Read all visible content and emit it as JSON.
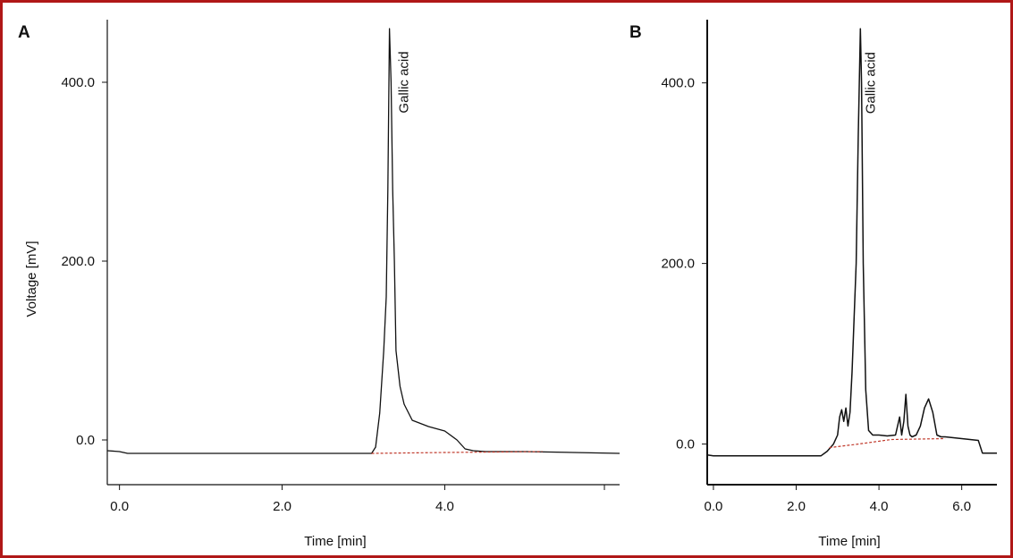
{
  "colors": {
    "border": "#b01818",
    "trace": "#111111",
    "baseline": "#c0392b"
  },
  "chart_data": [
    {
      "panel": "A",
      "type": "line",
      "xlabel": "Time [min]",
      "ylabel": "Voltage [mV]",
      "xlim": [
        -0.15,
        6.15
      ],
      "ylim": [
        -50,
        470
      ],
      "x_ticks": [
        0.0,
        2.0,
        4.0
      ],
      "x_tick_labels": [
        "0.0",
        "2.0",
        "4.0"
      ],
      "y_ticks": [
        0.0,
        200.0,
        400.0
      ],
      "y_tick_labels": [
        "0.0",
        "200.0",
        "400.0"
      ],
      "grid": false,
      "annotations": [
        {
          "text": "Gallic acid",
          "x": 3.55,
          "y": 400
        }
      ],
      "series": [
        {
          "role": "trace",
          "x": [
            -0.15,
            0.0,
            0.1,
            3.1,
            3.15,
            3.2,
            3.25,
            3.28,
            3.3,
            3.32,
            3.34,
            3.36,
            3.38,
            3.4,
            3.45,
            3.5,
            3.6,
            3.8,
            4.0,
            4.15,
            4.25,
            4.35,
            4.5,
            5.0,
            6.15
          ],
          "y": [
            -12,
            -13,
            -15,
            -15,
            -8,
            30,
            100,
            160,
            280,
            460,
            400,
            280,
            200,
            100,
            60,
            40,
            22,
            15,
            10,
            0,
            -10,
            -12,
            -13,
            -13,
            -15
          ]
        },
        {
          "role": "baseline",
          "x": [
            3.1,
            4.0,
            5.2
          ],
          "y": [
            -15,
            -14,
            -13
          ]
        }
      ]
    },
    {
      "panel": "B",
      "type": "line",
      "xlabel": "Time [min]",
      "ylabel": "",
      "xlim": [
        -0.15,
        6.85
      ],
      "ylim": [
        -45,
        470
      ],
      "x_ticks": [
        0.0,
        2.0,
        4.0,
        6.0
      ],
      "x_tick_labels": [
        "0.0",
        "2.0",
        "4.0",
        "6.0"
      ],
      "y_ticks": [
        0.0,
        200.0,
        400.0
      ],
      "y_tick_labels": [
        "0.0",
        "200.0",
        "400.0"
      ],
      "grid": false,
      "annotations": [
        {
          "text": "Gallic acid",
          "x": 3.9,
          "y": 400
        }
      ],
      "series": [
        {
          "role": "trace",
          "x": [
            -0.15,
            0.0,
            2.6,
            2.75,
            2.9,
            3.0,
            3.05,
            3.1,
            3.15,
            3.2,
            3.25,
            3.3,
            3.35,
            3.4,
            3.45,
            3.5,
            3.55,
            3.58,
            3.62,
            3.68,
            3.75,
            3.85,
            4.0,
            4.2,
            4.4,
            4.5,
            4.55,
            4.6,
            4.65,
            4.7,
            4.75,
            4.8,
            4.9,
            5.0,
            5.1,
            5.2,
            5.3,
            5.4,
            5.5,
            5.6,
            6.0,
            6.4,
            6.5,
            6.85
          ],
          "y": [
            -12,
            -13,
            -13,
            -8,
            0,
            10,
            30,
            38,
            25,
            40,
            20,
            35,
            80,
            140,
            200,
            340,
            460,
            400,
            200,
            60,
            15,
            10,
            10,
            9,
            10,
            30,
            10,
            25,
            55,
            20,
            10,
            8,
            10,
            20,
            40,
            50,
            35,
            10,
            8,
            8,
            6,
            4,
            -10,
            -10
          ]
        },
        {
          "role": "baseline",
          "x": [
            2.8,
            3.5,
            4.3,
            5.6
          ],
          "y": [
            -4,
            0,
            5,
            6
          ]
        }
      ]
    }
  ]
}
